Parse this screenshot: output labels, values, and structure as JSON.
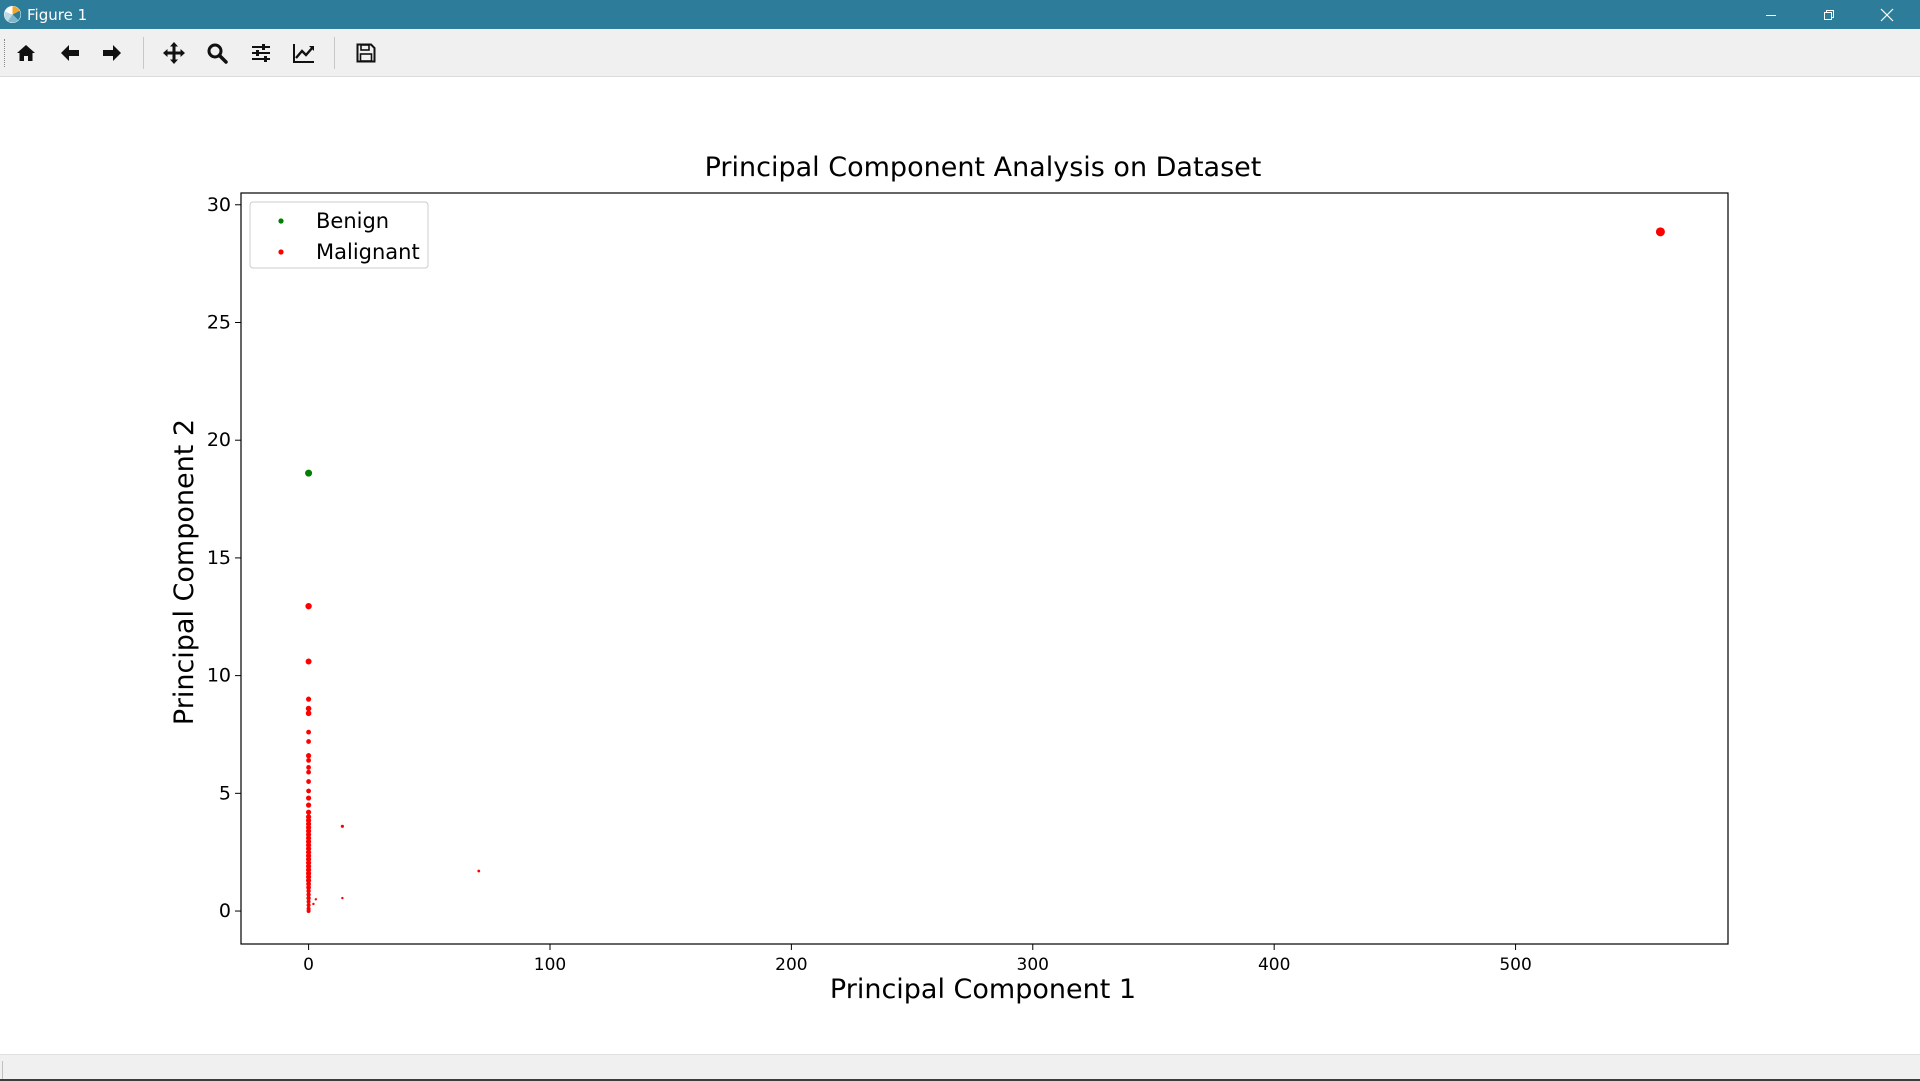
{
  "window": {
    "title": "Figure 1"
  },
  "toolbar": {
    "buttons": [
      {
        "icon": "home-icon"
      },
      {
        "icon": "arrow-left-icon"
      },
      {
        "icon": "arrow-right-icon"
      },
      {
        "icon": "move-icon"
      },
      {
        "icon": "zoom-icon"
      },
      {
        "icon": "sliders-icon"
      },
      {
        "icon": "chart-line-icon"
      },
      {
        "icon": "save-icon"
      }
    ]
  },
  "chart_data": {
    "type": "scatter",
    "title": "Principal Component Analysis on Dataset",
    "xlabel": "Principal Component 1",
    "ylabel": "Principal Component 2",
    "xlim": [
      -28,
      588
    ],
    "ylim": [
      -1.4,
      30.5
    ],
    "xticks": [
      0,
      100,
      200,
      300,
      400,
      500
    ],
    "yticks": [
      0,
      5,
      10,
      15,
      20,
      25,
      30
    ],
    "grid": false,
    "legend_position": "top-left",
    "series": [
      {
        "name": "Benign",
        "color": "#008000",
        "points": [
          [
            0,
            18.6,
            3.5
          ]
        ]
      },
      {
        "name": "Malignant",
        "color": "#ff0000",
        "points": [
          [
            560,
            28.85,
            4.5
          ],
          [
            0,
            12.95,
            3.2
          ],
          [
            0,
            10.6,
            3
          ],
          [
            0,
            9.0,
            2.6
          ],
          [
            0,
            8.6,
            2.8
          ],
          [
            0,
            8.4,
            2.8
          ],
          [
            0,
            7.6,
            2.4
          ],
          [
            0,
            7.2,
            2.4
          ],
          [
            0,
            6.6,
            2.6
          ],
          [
            0,
            6.4,
            2.4
          ],
          [
            0,
            6.1,
            2.4
          ],
          [
            0,
            5.9,
            2.4
          ],
          [
            0,
            5.5,
            2.4
          ],
          [
            0,
            5.1,
            2.4
          ],
          [
            0,
            4.8,
            2.6
          ],
          [
            0,
            4.5,
            2.6
          ],
          [
            0,
            4.2,
            2.6
          ],
          [
            0,
            4.0,
            2.6
          ],
          [
            0,
            3.85,
            2.6
          ],
          [
            0,
            3.7,
            2.6
          ],
          [
            0,
            3.55,
            2.6
          ],
          [
            0,
            3.4,
            2.6
          ],
          [
            0,
            3.25,
            2.6
          ],
          [
            0,
            3.1,
            2.6
          ],
          [
            0,
            2.95,
            2.6
          ],
          [
            0,
            2.8,
            2.6
          ],
          [
            0,
            2.65,
            2.6
          ],
          [
            0,
            2.5,
            2.6
          ],
          [
            0,
            2.35,
            2.6
          ],
          [
            0,
            2.2,
            2.6
          ],
          [
            0,
            2.05,
            2.6
          ],
          [
            0,
            1.9,
            2.6
          ],
          [
            0,
            1.75,
            2.6
          ],
          [
            0,
            1.6,
            2.6
          ],
          [
            0,
            1.45,
            2.6
          ],
          [
            0,
            1.3,
            2.6
          ],
          [
            0,
            1.15,
            2.4
          ],
          [
            0,
            1.0,
            2.4
          ],
          [
            0,
            0.85,
            2.2
          ],
          [
            0,
            0.7,
            2.2
          ],
          [
            0,
            0.55,
            2.2
          ],
          [
            0,
            0.4,
            2
          ],
          [
            0,
            0.25,
            2
          ],
          [
            0,
            0.1,
            2
          ],
          [
            0,
            0.0,
            2
          ],
          [
            2,
            0.3,
            1.2
          ],
          [
            3,
            0.5,
            1.2
          ],
          [
            14,
            3.6,
            1.6
          ],
          [
            14,
            0.55,
            1.2
          ],
          [
            70.5,
            1.7,
            1.4
          ]
        ]
      }
    ]
  }
}
